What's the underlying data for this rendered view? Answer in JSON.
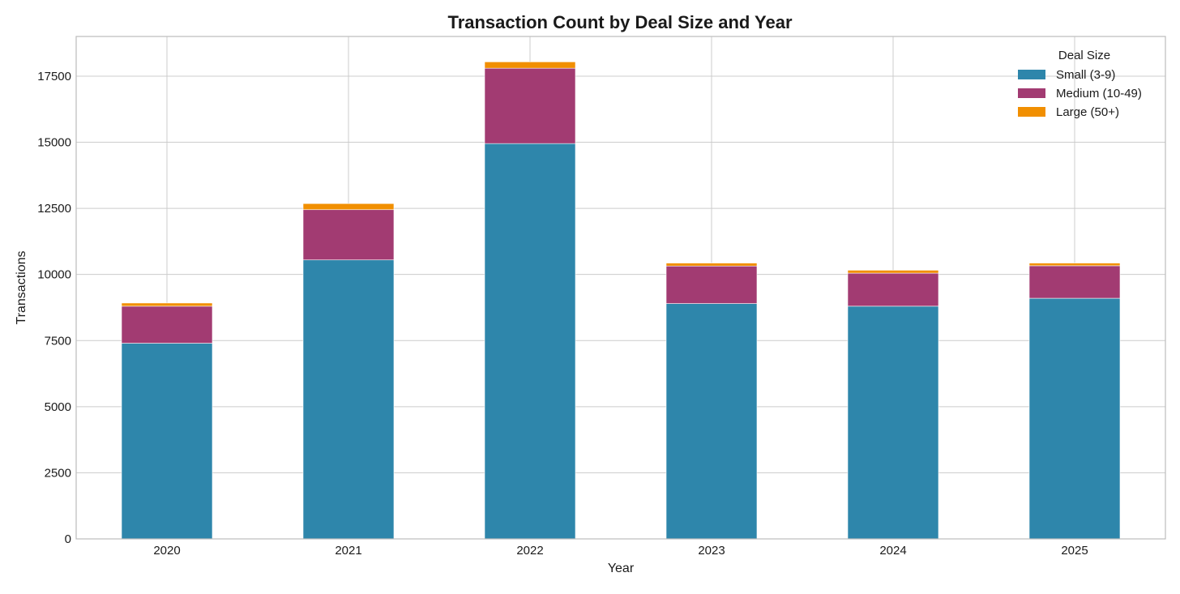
{
  "chart_data": {
    "type": "bar",
    "stacked": true,
    "title": "Transaction Count by Deal Size and Year",
    "xlabel": "Year",
    "ylabel": "Transactions",
    "categories": [
      "2020",
      "2021",
      "2022",
      "2023",
      "2024",
      "2025"
    ],
    "ylim": [
      0,
      19000
    ],
    "yticks": [
      0,
      2500,
      5000,
      7500,
      10000,
      12500,
      15000,
      17500
    ],
    "grid": true,
    "legend": {
      "title": "Deal Size",
      "position": "top-right"
    },
    "series": [
      {
        "name": "Small (3-9)",
        "color": "#2e86ab",
        "values": [
          7400,
          10550,
          14950,
          8900,
          8800,
          9100
        ]
      },
      {
        "name": "Medium (10-49)",
        "color": "#a23b72",
        "values": [
          1400,
          1900,
          2850,
          1420,
          1250,
          1230
        ]
      },
      {
        "name": "Large (50+)",
        "color": "#f18f01",
        "values": [
          120,
          230,
          240,
          110,
          110,
          100
        ]
      }
    ]
  }
}
